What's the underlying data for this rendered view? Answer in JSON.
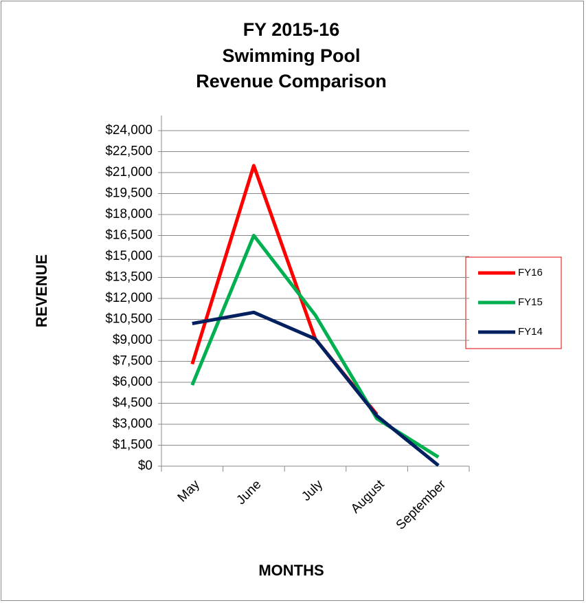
{
  "chart_data": {
    "type": "line",
    "title": [
      "FY 2015-16",
      "Swimming Pool",
      "Revenue Comparison"
    ],
    "x_label": "MONTHS",
    "y_label": "REVENUE",
    "categories": [
      "May",
      "June",
      "July",
      "August",
      "September"
    ],
    "series": [
      {
        "name": "FY16",
        "color": "#ff0000",
        "values": [
          7300,
          21500,
          9100,
          3700,
          null
        ]
      },
      {
        "name": "FY15",
        "color": "#00b050",
        "values": [
          5800,
          16500,
          10800,
          3400,
          650
        ]
      },
      {
        "name": "FY14",
        "color": "#002060",
        "values": [
          10200,
          11000,
          9100,
          3600,
          50
        ]
      }
    ],
    "ylim": [
      0,
      24000
    ],
    "yticks": [
      {
        "value": 0,
        "label": "$0"
      },
      {
        "value": 1500,
        "label": "$1,500"
      },
      {
        "value": 3000,
        "label": "$3,000"
      },
      {
        "value": 4500,
        "label": "$4,500"
      },
      {
        "value": 6000,
        "label": "$6,000"
      },
      {
        "value": 7500,
        "label": "$7,500"
      },
      {
        "value": 9000,
        "label": "$9,000"
      },
      {
        "value": 10500,
        "label": "$10,500"
      },
      {
        "value": 12000,
        "label": "$12,000"
      },
      {
        "value": 13500,
        "label": "$13,500"
      },
      {
        "value": 15000,
        "label": "$15,000"
      },
      {
        "value": 16500,
        "label": "$16,500"
      },
      {
        "value": 18000,
        "label": "$18,000"
      },
      {
        "value": 19500,
        "label": "$19,500"
      },
      {
        "value": 21000,
        "label": "$21,000"
      },
      {
        "value": 22500,
        "label": "$22,500"
      },
      {
        "value": 24000,
        "label": "$24,000"
      }
    ],
    "grid": true,
    "legend": "right"
  }
}
